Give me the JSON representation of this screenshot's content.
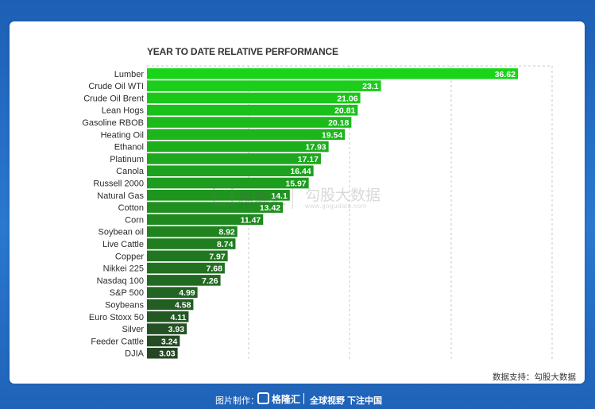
{
  "chart_data": {
    "type": "bar",
    "orientation": "horizontal",
    "title": "YEAR TO DATE RELATIVE PERFORMANCE",
    "categories": [
      "Lumber",
      "Crude Oil WTI",
      "Crude Oil Brent",
      "Lean Hogs",
      "Gasoline RBOB",
      "Heating Oil",
      "Ethanol",
      "Platinum",
      "Canola",
      "Russell 2000",
      "Natural Gas",
      "Cotton",
      "Corn",
      "Soybean oil",
      "Live Cattle",
      "Copper",
      "Nikkei 225",
      "Nasdaq 100",
      "S&P 500",
      "Soybeans",
      "Euro Stoxx 50",
      "Silver",
      "Feeder Cattle",
      "DJIA"
    ],
    "values": [
      36.62,
      23.1,
      21.06,
      20.81,
      20.18,
      19.54,
      17.93,
      17.17,
      16.44,
      15.97,
      14.1,
      13.42,
      11.47,
      8.92,
      8.74,
      7.97,
      7.68,
      7.26,
      4.99,
      4.58,
      4.11,
      3.93,
      3.24,
      3.03
    ],
    "value_labels": [
      "36.62",
      "23.1",
      "21.06",
      "20.81",
      "20.18",
      "19.54",
      "17.93",
      "17.17",
      "16.44",
      "15.97",
      "14.1",
      "13.42",
      "11.47",
      "8.92",
      "8.74",
      "7.97",
      "7.68",
      "7.26",
      "4.99",
      "4.58",
      "4.11",
      "3.93",
      "3.24",
      "3.03"
    ],
    "xlim": [
      0,
      36.62
    ],
    "grid": "vertical dashed",
    "colors": {
      "top": "#19d419",
      "bottom": "#254525"
    }
  },
  "watermark": {
    "brand": "格隆汇",
    "name": "勾股大数据",
    "url": "www.gogudata.com"
  },
  "source_note": "数据支持：勾股大数据",
  "footer": {
    "made_by": "图片制作：",
    "brand": "格隆汇",
    "slogan": "全球视野 下注中国"
  }
}
